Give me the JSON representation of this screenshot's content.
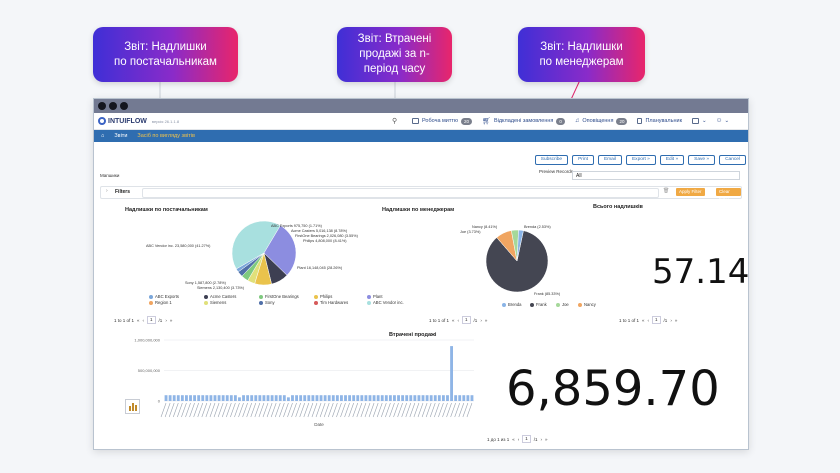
{
  "callouts": {
    "suppliers": "Звіт: Надлишки\nпо постачальникам",
    "lost_sales": "Звіт: Втрачені\nпродажі за n-\nперіод часу",
    "managers": "Звіт: Надлишки\nпо менеджерам"
  },
  "app": {
    "logo_text": "INTUIFLOW",
    "version": "версія 26.1.1.8",
    "nav": [
      {
        "label": "Робоча миттю",
        "badge": "20"
      },
      {
        "label": "Відкладені замовлення",
        "badge": "0"
      },
      {
        "label": "Оповіщення",
        "badge": "20"
      },
      {
        "label": "Планувальник",
        "badge": ""
      }
    ],
    "breadcrumb": {
      "home": "⌂",
      "item1": "Звіти",
      "item2": "Засіб по вигляду звітів"
    }
  },
  "toolbar": {
    "subscribe": "Subscribe",
    "print": "Print",
    "email": "Email",
    "export": "Export »",
    "edit": "Edit »",
    "save": "Save »",
    "cancel": "Cancel"
  },
  "filters": {
    "title_label": "Мапшики",
    "preview_label": "Preview Records",
    "preview_value": "All",
    "filters_label": "Filters",
    "apply": "Apply Filter",
    "clear": "Clear Filter"
  },
  "panel_suppliers": {
    "title": "Надлишки по постачальникам",
    "slice_labels": [
      "ABC Exports 975,750 (1.71%)",
      "Acme Casters 5,016,138 (8.78%)",
      "FirstOne Bearings 2,026,080 (3.55%)",
      "Philips 4,808,000 (8.41%)",
      "ABC Vendor inc. 23,580,000 (41.27%)",
      "Plant 16,148,045 (28.26%)",
      "Sony 1,587,800 (2.78%)",
      "Siemens 2,130,400 (3.73%)"
    ],
    "legend": [
      "ABC Exports",
      "Acme Casters",
      "FirstOne Bearings",
      "Philips",
      "Plant",
      "Region 1",
      "Siemens",
      "Sony",
      "Tim Hardwares",
      "ABC Vendor inc."
    ],
    "pager": "1 to 1 of 1",
    "page": "1",
    "page_of": "/1"
  },
  "panel_managers": {
    "title": "Надлишки по менеджерам",
    "slice_labels": [
      "Nancy (8.41%)",
      "Joe (3.73%)",
      "Brenda (2.53%)",
      "Frank (85.33%)"
    ],
    "legend": [
      "Brenda",
      "Frank",
      "Joe",
      "Nancy"
    ],
    "pager": "1 to 1 of 1",
    "page": "1",
    "page_of": "/1"
  },
  "panel_total": {
    "title": "Всього надлишків",
    "value": "57.14",
    "pager": "1 to 1 of 1",
    "page": "1",
    "page_of": "/1"
  },
  "panel_lost": {
    "title": "Втрачені продажі",
    "value": "6,859.70",
    "xlabel": "Date",
    "pager": "1 до 1 из 1",
    "page": "1",
    "page_of": "/1"
  },
  "chart_data": [
    {
      "type": "pie",
      "title": "Надлишки по постачальникам",
      "categories": [
        "ABC Vendor inc.",
        "Plant",
        "Acme Casters",
        "Philips",
        "Siemens",
        "FirstOne Bearings",
        "Sony",
        "ABC Exports"
      ],
      "values": [
        41.27,
        28.26,
        8.78,
        8.41,
        3.73,
        3.55,
        2.78,
        1.71
      ],
      "colors": [
        "#a8e0df",
        "#8c8de0",
        "#3d3f52",
        "#eac34c",
        "#e0e07a",
        "#7fc97f",
        "#4f6fa8",
        "#7aa6da"
      ]
    },
    {
      "type": "pie",
      "title": "Надлишки по менеджерам",
      "categories": [
        "Frank",
        "Nancy",
        "Joe",
        "Brenda"
      ],
      "values": [
        85.33,
        8.41,
        3.73,
        2.53
      ],
      "colors": [
        "#444652",
        "#f0a561",
        "#a5d89a",
        "#8ab4e6"
      ]
    },
    {
      "type": "bar",
      "title": "Втрачені продажі",
      "xlabel": "Date",
      "yticks": [
        "1,000,000,000",
        "500,000,000",
        "0"
      ],
      "ylim": [
        0,
        1000000000
      ],
      "values": [
        95,
        95,
        95,
        95,
        95,
        95,
        95,
        95,
        95,
        95,
        95,
        95,
        95,
        95,
        95,
        95,
        95,
        95,
        60,
        95,
        95,
        95,
        95,
        95,
        95,
        95,
        95,
        95,
        95,
        95,
        60,
        95,
        95,
        95,
        95,
        95,
        95,
        95,
        95,
        95,
        95,
        95,
        95,
        95,
        95,
        95,
        95,
        95,
        95,
        95,
        95,
        95,
        95,
        95,
        95,
        95,
        95,
        95,
        95,
        95,
        95,
        95,
        95,
        95,
        95,
        95,
        95,
        95,
        95,
        95,
        900,
        95,
        95,
        95,
        95,
        95
      ],
      "value_scale": 1000000,
      "color": "#8fb5e6"
    }
  ]
}
